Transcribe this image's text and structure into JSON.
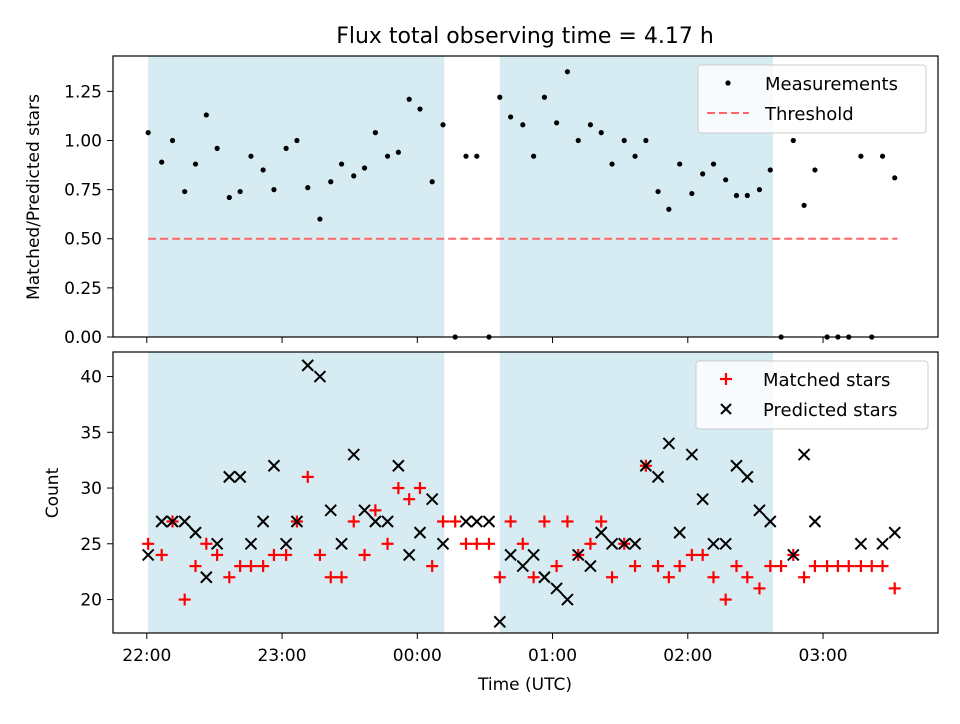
{
  "title": "Flux total observing time = 4.17 h",
  "colors": {
    "shade": "#add8e6",
    "threshold": "#ff6666",
    "matched": "#ff0000",
    "predicted": "#000000",
    "measurement": "#000000"
  },
  "chart_data": [
    {
      "type": "scatter",
      "ylabel": "Matched/Predicted stars",
      "ylim": [
        0,
        1.43
      ],
      "yticks": [
        0,
        0.25,
        0.5,
        0.75,
        1.0,
        1.25
      ],
      "ytick_labels": [
        "0.00",
        "0.25",
        "0.50",
        "0.75",
        "1.00",
        "1.25"
      ],
      "xlim": [
        -0.25,
        5.85
      ],
      "xticks": [
        0,
        1,
        2,
        3,
        4,
        5
      ],
      "legend": {
        "placement": "top-right",
        "entries": [
          "Measurements",
          "Threshold"
        ]
      },
      "shaded_spans": [
        [
          0.01,
          2.2
        ],
        [
          2.61,
          4.63
        ]
      ],
      "threshold": {
        "y": 0.5,
        "x_range": [
          0.01,
          5.55
        ],
        "label": "Threshold"
      },
      "series": [
        {
          "name": "Measurements",
          "x": [
            0.01,
            0.11,
            0.19,
            0.28,
            0.36,
            0.44,
            0.52,
            0.61,
            0.69,
            0.77,
            0.86,
            0.94,
            1.03,
            1.11,
            1.19,
            1.28,
            1.36,
            1.44,
            1.53,
            1.61,
            1.69,
            1.78,
            1.86,
            1.94,
            2.02,
            2.11,
            2.19,
            2.28,
            2.36,
            2.44,
            2.53,
            2.61,
            2.69,
            2.78,
            2.86,
            2.94,
            3.03,
            3.11,
            3.19,
            3.28,
            3.36,
            3.44,
            3.53,
            3.61,
            3.69,
            3.78,
            3.86,
            3.94,
            4.03,
            4.11,
            4.19,
            4.28,
            4.36,
            4.44,
            4.53,
            4.61,
            4.69,
            4.78,
            4.86,
            4.94,
            5.03,
            5.11,
            5.19,
            5.28,
            5.36,
            5.44,
            5.53
          ],
          "y": [
            1.04,
            0.89,
            1.0,
            0.74,
            0.88,
            1.13,
            0.96,
            0.71,
            0.74,
            0.92,
            0.85,
            0.75,
            0.96,
            1.0,
            0.76,
            0.6,
            0.79,
            0.88,
            0.82,
            0.86,
            1.04,
            0.92,
            0.94,
            1.21,
            1.16,
            0.79,
            1.08,
            0.0,
            0.92,
            0.92,
            0.0,
            1.22,
            1.12,
            1.08,
            0.92,
            1.22,
            1.09,
            1.35,
            1.0,
            1.08,
            1.04,
            0.88,
            1.0,
            0.92,
            1.0,
            0.74,
            0.65,
            0.88,
            0.73,
            0.83,
            0.88,
            0.8,
            0.72,
            0.72,
            0.75,
            0.85,
            0.0,
            1.0,
            0.67,
            0.85,
            0.0,
            0.0,
            0.0,
            0.92,
            0.0,
            0.92,
            0.81
          ]
        }
      ]
    },
    {
      "type": "scatter",
      "ylabel": "Count",
      "xlabel": "Time (UTC)",
      "ylim": [
        17,
        42.2
      ],
      "yticks": [
        20,
        25,
        30,
        35,
        40
      ],
      "ytick_labels": [
        "20",
        "25",
        "30",
        "35",
        "40"
      ],
      "xlim": [
        -0.25,
        5.85
      ],
      "xticks": [
        0,
        1,
        2,
        3,
        4,
        5
      ],
      "xtick_labels": [
        "22:00",
        "23:00",
        "00:00",
        "01:00",
        "02:00",
        "03:00"
      ],
      "legend": {
        "placement": "top-right",
        "entries": [
          "Matched stars",
          "Predicted stars"
        ]
      },
      "shaded_spans": [
        [
          0.01,
          2.2
        ],
        [
          2.61,
          4.63
        ]
      ],
      "series": [
        {
          "name": "Matched stars",
          "x": [
            0.01,
            0.11,
            0.19,
            0.28,
            0.36,
            0.44,
            0.52,
            0.61,
            0.69,
            0.77,
            0.86,
            0.94,
            1.03,
            1.11,
            1.19,
            1.28,
            1.36,
            1.44,
            1.53,
            1.61,
            1.69,
            1.78,
            1.86,
            1.94,
            2.02,
            2.11,
            2.19,
            2.28,
            2.36,
            2.44,
            2.53,
            2.61,
            2.69,
            2.78,
            2.86,
            2.94,
            3.03,
            3.11,
            3.19,
            3.28,
            3.36,
            3.44,
            3.53,
            3.61,
            3.69,
            3.78,
            3.86,
            3.94,
            4.03,
            4.11,
            4.19,
            4.28,
            4.36,
            4.44,
            4.53,
            4.61,
            4.69,
            4.78,
            4.86,
            4.94,
            5.03,
            5.11,
            5.19,
            5.28,
            5.36,
            5.44,
            5.53
          ],
          "y": [
            25,
            24,
            27,
            20,
            23,
            25,
            24,
            22,
            23,
            23,
            23,
            24,
            24,
            27,
            31,
            24,
            22,
            22,
            27,
            24,
            28,
            25,
            30,
            29,
            30,
            23,
            27,
            27,
            25,
            25,
            25,
            22,
            27,
            25,
            22,
            27,
            23,
            27,
            24,
            25,
            27,
            22,
            25,
            23,
            32,
            23,
            22,
            23,
            24,
            24,
            22,
            20,
            23,
            22,
            21,
            23,
            23,
            24,
            22,
            23,
            23,
            23,
            23,
            23,
            23,
            23,
            21
          ]
        },
        {
          "name": "Predicted stars",
          "x": [
            0.01,
            0.11,
            0.19,
            0.28,
            0.36,
            0.44,
            0.52,
            0.61,
            0.69,
            0.77,
            0.86,
            0.94,
            1.03,
            1.11,
            1.19,
            1.28,
            1.36,
            1.44,
            1.53,
            1.61,
            1.69,
            1.78,
            1.86,
            1.94,
            2.02,
            2.11,
            2.19,
            2.36,
            2.44,
            2.53,
            2.61,
            2.69,
            2.78,
            2.86,
            2.94,
            3.03,
            3.11,
            3.19,
            3.28,
            3.36,
            3.44,
            3.53,
            3.61,
            3.69,
            3.78,
            3.86,
            3.94,
            4.03,
            4.11,
            4.19,
            4.28,
            4.36,
            4.44,
            4.53,
            4.61,
            4.78,
            4.86,
            4.94,
            5.28,
            5.44,
            5.53
          ],
          "y": [
            24,
            27,
            27,
            27,
            26,
            22,
            25,
            31,
            31,
            25,
            27,
            32,
            25,
            27,
            41,
            40,
            28,
            25,
            33,
            28,
            27,
            27,
            32,
            24,
            26,
            29,
            25,
            27,
            27,
            27,
            18,
            24,
            23,
            24,
            22,
            21,
            20,
            24,
            23,
            26,
            25,
            25,
            25,
            32,
            31,
            34,
            26,
            33,
            29,
            25,
            25,
            32,
            31,
            28,
            27,
            24,
            33,
            27,
            25,
            25,
            26
          ]
        }
      ]
    }
  ]
}
